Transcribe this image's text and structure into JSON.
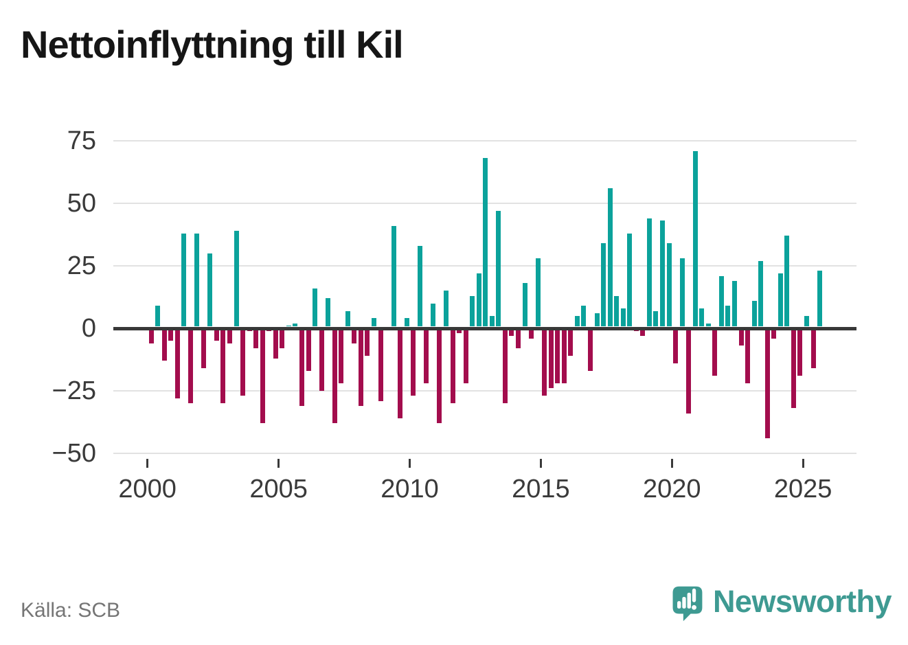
{
  "title": "Nettoinflyttning till Kil",
  "source": "Källa: SCB",
  "logo": {
    "text": "Newsworthy",
    "color": "#3e9a92"
  },
  "colors": {
    "positive": "#0ba29b",
    "negative": "#a30d4d",
    "grid": "#e2e2e2",
    "zero_line": "#383838",
    "axis_text": "#3a3a3a",
    "title_text": "#161616",
    "source_text": "#757575"
  },
  "chart_data": {
    "type": "bar",
    "title": "Nettoinflyttning till Kil",
    "frequency": "quarterly",
    "xlabel": "",
    "ylabel": "",
    "ylim": [
      -50,
      75
    ],
    "grid": true,
    "y_ticks": [
      75,
      50,
      25,
      0,
      -25,
      -50
    ],
    "y_tick_labels": [
      "75",
      "50",
      "25",
      "0",
      "−25",
      "−50"
    ],
    "x_tick_years": [
      2000,
      2005,
      2010,
      2015,
      2020,
      2025
    ],
    "x_tick_labels": [
      "2000",
      "2005",
      "2010",
      "2015",
      "2020",
      "2025"
    ],
    "series": [
      {
        "year": 2000,
        "values": [
          -6,
          9,
          -13,
          -5
        ]
      },
      {
        "year": 2001,
        "values": [
          -28,
          38,
          -30,
          38
        ]
      },
      {
        "year": 2002,
        "values": [
          -16,
          30,
          -5,
          -30
        ]
      },
      {
        "year": 2003,
        "values": [
          -6,
          39,
          -27,
          -1
        ]
      },
      {
        "year": 2004,
        "values": [
          -8,
          -38,
          -1,
          -12
        ]
      },
      {
        "year": 2005,
        "values": [
          -8,
          1,
          2,
          -31
        ]
      },
      {
        "year": 2006,
        "values": [
          -17,
          16,
          -25,
          12
        ]
      },
      {
        "year": 2007,
        "values": [
          -38,
          -22,
          7,
          -6
        ]
      },
      {
        "year": 2008,
        "values": [
          -31,
          -11,
          4,
          -29
        ]
      },
      {
        "year": 2009,
        "values": [
          0,
          41,
          -36,
          4
        ]
      },
      {
        "year": 2010,
        "values": [
          -27,
          33,
          -22,
          10
        ]
      },
      {
        "year": 2011,
        "values": [
          -38,
          15,
          -30,
          -2
        ]
      },
      {
        "year": 2012,
        "values": [
          -22,
          13,
          22,
          68
        ]
      },
      {
        "year": 2013,
        "values": [
          5,
          47,
          -30,
          -3
        ]
      },
      {
        "year": 2014,
        "values": [
          -8,
          18,
          -4,
          28
        ]
      },
      {
        "year": 2015,
        "values": [
          -27,
          -24,
          -22,
          -22
        ]
      },
      {
        "year": 2016,
        "values": [
          -11,
          5,
          9,
          -17
        ]
      },
      {
        "year": 2017,
        "values": [
          6,
          34,
          56,
          13
        ]
      },
      {
        "year": 2018,
        "values": [
          8,
          38,
          -1,
          -3
        ]
      },
      {
        "year": 2019,
        "values": [
          44,
          7,
          43,
          34
        ]
      },
      {
        "year": 2020,
        "values": [
          -14,
          28,
          -34,
          71
        ]
      },
      {
        "year": 2021,
        "values": [
          8,
          2,
          -19,
          21
        ]
      },
      {
        "year": 2022,
        "values": [
          9,
          19,
          -7,
          -22
        ]
      },
      {
        "year": 2023,
        "values": [
          11,
          27,
          -44,
          -4
        ]
      },
      {
        "year": 2024,
        "values": [
          22,
          37,
          -32,
          -19
        ]
      },
      {
        "year": 2025,
        "values": [
          5,
          -16,
          23
        ]
      }
    ]
  }
}
